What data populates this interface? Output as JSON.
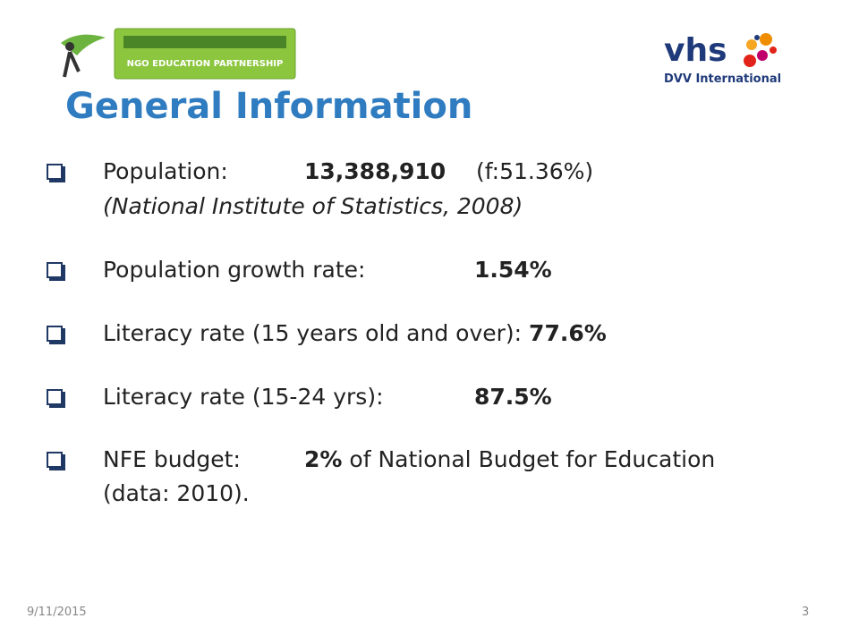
{
  "header": {
    "title": "General Information",
    "left_logo": "NGO EDUCATION PARTNERSHIP",
    "right_logo": {
      "name": "vhs",
      "subtitle": "DVV International"
    }
  },
  "items": [
    {
      "label": "Population:",
      "value": "13,388,910",
      "extra": "(f:51.36%)",
      "note": "(National Institute of Statistics, 2008)"
    },
    {
      "label": "Population growth rate:",
      "value": "1.54%"
    },
    {
      "label": "Literacy rate (15 years old and over):",
      "value": "77.6%"
    },
    {
      "label": "Literacy rate (15-24 yrs):",
      "value": "87.5%"
    },
    {
      "label": "NFE budget:",
      "value": "2%",
      "extra": "of National Budget for Education",
      "note": "(data: 2010)."
    }
  ],
  "footer": {
    "date": "9/11/2015",
    "page": "3"
  }
}
